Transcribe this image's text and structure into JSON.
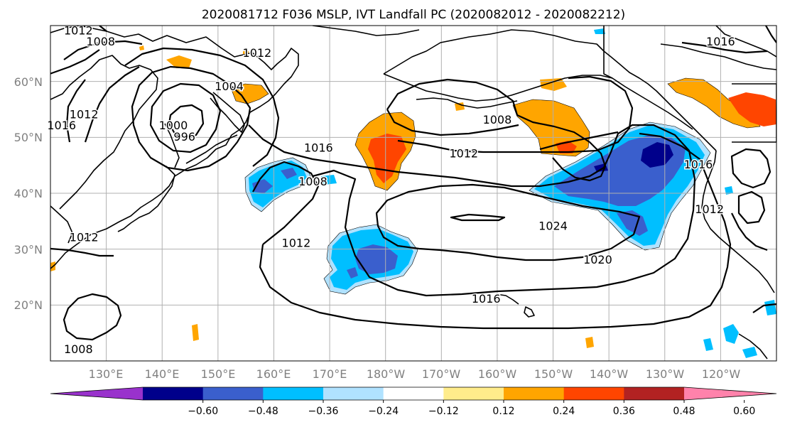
{
  "title": "2020081712 F036 MSLP, IVT Landfall PC (2020082012 - 2020082212)",
  "lat_labels": [
    "60°N",
    "50°N",
    "40°N",
    "30°N",
    "20°N"
  ],
  "lon_labels": [
    "130°E",
    "140°E",
    "150°E",
    "160°E",
    "170°E",
    "180°W",
    "170°W",
    "160°W",
    "150°W",
    "140°W",
    "130°W",
    "120°W"
  ],
  "colorbar": {
    "ticks": [
      "−0.60",
      "−0.48",
      "−0.36",
      "−0.24",
      "−0.12",
      "0.12",
      "0.24",
      "0.36",
      "0.48",
      "0.60"
    ],
    "colors": [
      "#9932cc",
      "#00008b",
      "#3a5fcd",
      "#00bfff",
      "#b0e2ff",
      "#ffffff",
      "#ffec8b",
      "#ffa500",
      "#ff4500",
      "#b22222",
      "#ff82ab"
    ]
  },
  "map": {
    "contour_labels": [
      {
        "text": "1012",
        "lon": 125,
        "lat": 69
      },
      {
        "text": "1008",
        "lon": 129,
        "lat": 67
      },
      {
        "text": "1004",
        "lon": 152,
        "lat": 59
      },
      {
        "text": "1000",
        "lon": 142,
        "lat": 52
      },
      {
        "text": "996",
        "lon": 144,
        "lat": 50
      },
      {
        "text": "1012",
        "lon": 126,
        "lat": 54
      },
      {
        "text": "1016",
        "lon": 122,
        "lat": 52
      },
      {
        "text": "1016",
        "lon": 168,
        "lat": 48
      },
      {
        "text": "1008",
        "lon": 167,
        "lat": 42
      },
      {
        "text": "1012",
        "lon": 194,
        "lat": 47
      },
      {
        "text": "1008",
        "lon": 200,
        "lat": 53
      },
      {
        "text": "1012",
        "lon": 157,
        "lat": 65
      },
      {
        "text": "1016",
        "lon": 240,
        "lat": 67
      },
      {
        "text": "1012",
        "lon": 126,
        "lat": 32
      },
      {
        "text": "1008",
        "lon": 125,
        "lat": 12
      },
      {
        "text": "1012",
        "lon": 164,
        "lat": 31
      },
      {
        "text": "1024",
        "lon": 210,
        "lat": 34
      },
      {
        "text": "1020",
        "lon": 218,
        "lat": 28
      },
      {
        "text": "1016",
        "lon": 198,
        "lat": 21
      },
      {
        "text": "1016",
        "lon": 236,
        "lat": 45
      },
      {
        "text": "1012",
        "lon": 238,
        "lat": 37
      }
    ]
  }
}
